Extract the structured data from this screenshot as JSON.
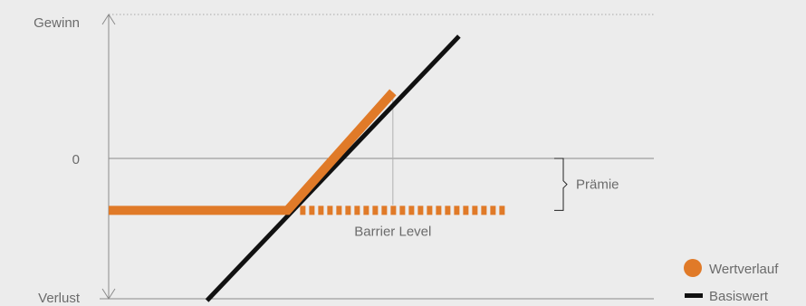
{
  "chart_data": {
    "type": "line",
    "y_axis": {
      "top_label": "Gewinn",
      "zero_label": "0",
      "bottom_label": "Verlust"
    },
    "annotations": {
      "premium_label": "Prämie",
      "barrier_label": "Barrier Level"
    },
    "legend": {
      "placement": "bottom-right",
      "items": [
        {
          "label": "Wertverlauf",
          "marker": "circle",
          "color": "#e07a28"
        },
        {
          "label": "Basiswert",
          "marker": "line",
          "color": "#111111"
        }
      ]
    },
    "series": [
      {
        "name": "Wertverlauf",
        "color": "#e07a28",
        "style": "solid",
        "points": [
          [
            0.0,
            -0.37
          ],
          [
            1.0,
            -0.37
          ],
          [
            1.59,
            0.46
          ]
        ]
      },
      {
        "name": "Basiswert",
        "color": "#111111",
        "style": "solid",
        "points": [
          [
            0.55,
            -1.0
          ],
          [
            1.96,
            1.0
          ]
        ]
      },
      {
        "name": "Wertverlauf (Barrier)",
        "color": "#e07a28",
        "style": "dashed",
        "points": [
          [
            1.0,
            -0.37
          ],
          [
            2.22,
            -0.37
          ]
        ]
      }
    ],
    "barrier_level_x": 1.59,
    "premium_range": [
      -0.37,
      0.0
    ],
    "xlim": [
      0,
      3.05
    ],
    "ylim": [
      -1.0,
      1.0
    ]
  }
}
